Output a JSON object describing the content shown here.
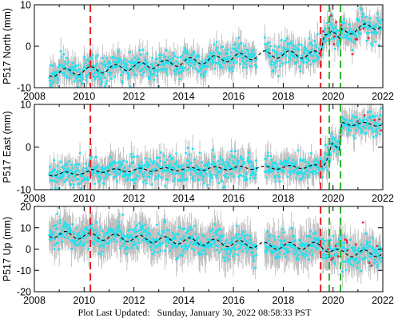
{
  "footer": {
    "label": "Plot Last Updated:",
    "date": "Sunday, January 30, 2022 08:58:33 PST"
  },
  "colors": {
    "obs": "#22e2f0",
    "errorbar": "#bdbdbd",
    "outlier": "#e8203a",
    "model": "#000000",
    "event_red": "#e81e25",
    "event_green": "#2cb42c"
  },
  "chart_data": [
    {
      "type": "scatter",
      "ylabel": "P517 North (mm)",
      "xlim": [
        2008,
        2022
      ],
      "ylim": [
        -10,
        10
      ],
      "xticks": [
        2008,
        2010,
        2012,
        2014,
        2016,
        2018,
        2020,
        2022
      ],
      "yticks": [
        -10,
        0,
        10
      ],
      "show_xticklabels": true,
      "data_span": [
        2008.6,
        2021.95
      ],
      "gap": [
        2016.95,
        2017.25
      ],
      "model_trend": [
        [
          2008.6,
          -6.5
        ],
        [
          2010.3,
          -5.8
        ],
        [
          2017.0,
          -2.2
        ],
        [
          2017.25,
          -2.0
        ],
        [
          2019.5,
          -2.0
        ],
        [
          2019.65,
          3.5
        ],
        [
          2019.95,
          4.0
        ],
        [
          2020.25,
          1.0
        ],
        [
          2020.35,
          3.5
        ],
        [
          2021.95,
          5.2
        ]
      ],
      "seasonal_amp": 0.9,
      "scatter_sd": 1.6,
      "error_bar": 2.4,
      "events": {
        "red": [
          2010.25,
          2019.5
        ],
        "green": [
          2019.85,
          2020.3
        ]
      }
    },
    {
      "type": "scatter",
      "ylabel": "P517 East (mm)",
      "xlim": [
        2008,
        2022
      ],
      "ylim": [
        -10,
        10
      ],
      "xticks": [
        2008,
        2010,
        2012,
        2014,
        2016,
        2018,
        2020,
        2022
      ],
      "yticks": [
        -10,
        0,
        10
      ],
      "show_xticklabels": true,
      "data_span": [
        2008.6,
        2021.95
      ],
      "gap": [
        2016.95,
        2017.25
      ],
      "model_trend": [
        [
          2008.6,
          -6.4
        ],
        [
          2010.25,
          -6.0
        ],
        [
          2010.3,
          -5.6
        ],
        [
          2017.0,
          -4.8
        ],
        [
          2017.25,
          -4.9
        ],
        [
          2019.6,
          -4.5
        ],
        [
          2019.8,
          -2.0
        ],
        [
          2019.95,
          1.0
        ],
        [
          2020.25,
          -1.0
        ],
        [
          2020.35,
          5.5
        ],
        [
          2021.95,
          5.3
        ]
      ],
      "seasonal_amp": 0.4,
      "scatter_sd": 1.6,
      "error_bar": 2.4,
      "events": {
        "red": [
          2010.25,
          2019.5
        ],
        "green": [
          2019.85,
          2020.3
        ]
      }
    },
    {
      "type": "scatter",
      "ylabel": "P517 Up (mm)",
      "xlim": [
        2008,
        2022
      ],
      "ylim": [
        -20,
        20
      ],
      "xticks": [
        2008,
        2010,
        2012,
        2014,
        2016,
        2018,
        2020,
        2022
      ],
      "yticks": [
        -20,
        -10,
        0,
        10,
        20
      ],
      "show_xticklabels": true,
      "data_span": [
        2008.6,
        2021.95
      ],
      "gap": [
        2016.95,
        2017.25
      ],
      "model_trend": [
        [
          2008.6,
          7.0
        ],
        [
          2010.3,
          6.0
        ],
        [
          2017.0,
          2.0
        ],
        [
          2017.25,
          1.5
        ],
        [
          2019.5,
          1.5
        ],
        [
          2020.3,
          -2.0
        ],
        [
          2021.95,
          -2.0
        ]
      ],
      "seasonal_amp": 1.6,
      "scatter_sd": 3.2,
      "error_bar": 6.5,
      "events": {
        "red": [
          2010.25,
          2019.5
        ],
        "green": [
          2019.85,
          2020.3
        ]
      }
    }
  ]
}
